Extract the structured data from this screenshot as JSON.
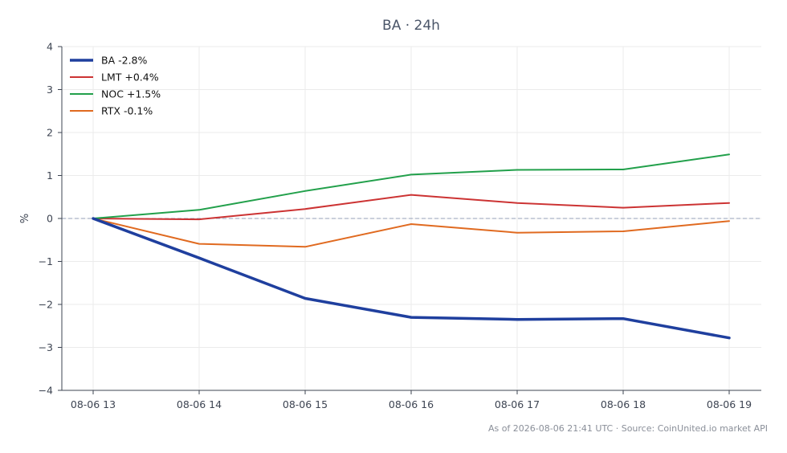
{
  "chart_data": {
    "type": "line",
    "title": "BA · 24h",
    "xlabel": "",
    "ylabel": "%",
    "ylim": [
      -4,
      4
    ],
    "yticks": [
      "−4",
      "−3",
      "−2",
      "−1",
      "0",
      "1",
      "2",
      "3",
      "4"
    ],
    "ytick_values": [
      -4,
      -3,
      -2,
      -1,
      0,
      1,
      2,
      3,
      4
    ],
    "categories": [
      "08-06 13",
      "08-06 14",
      "08-06 15",
      "08-06 16",
      "08-06 17",
      "08-06 18",
      "08-06 19"
    ],
    "grid": true,
    "legend": "top-left",
    "series": [
      {
        "name": "BA -2.8%",
        "color": "#1f3f9e",
        "values": [
          0,
          -0.92,
          -1.86,
          -2.3,
          -2.35,
          -2.33,
          -2.78
        ]
      },
      {
        "name": "LMT +0.4%",
        "color": "#cc3333",
        "values": [
          0,
          -0.02,
          0.22,
          0.55,
          0.36,
          0.25,
          0.36
        ]
      },
      {
        "name": "NOC +1.5%",
        "color": "#22a04b",
        "values": [
          0,
          0.2,
          0.64,
          1.02,
          1.13,
          1.14,
          1.49
        ]
      },
      {
        "name": "RTX -0.1%",
        "color": "#e06a20",
        "values": [
          0,
          -0.59,
          -0.66,
          -0.13,
          -0.33,
          -0.3,
          -0.06
        ]
      }
    ],
    "source_note": "As of 2026-08-06 21:41 UTC · Source: CoinUnited.io market API"
  }
}
